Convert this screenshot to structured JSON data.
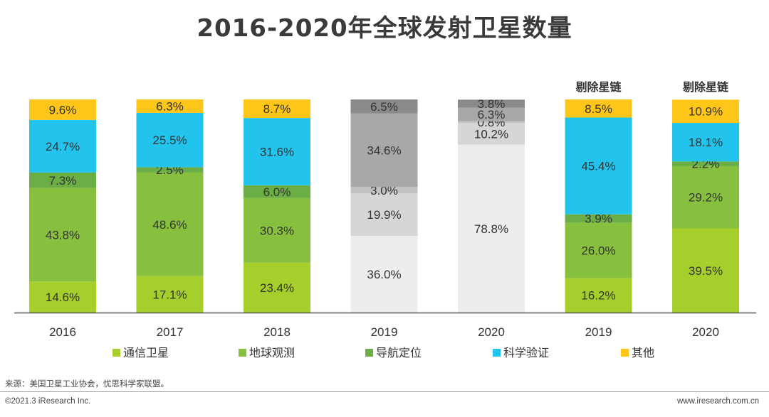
{
  "page": {
    "title": "2016-2020年全球发射卫星数量",
    "source": "来源：美国卫星工业协会，忧思科学家联盟。",
    "copyright": "©2021.3 iResearch Inc.",
    "website": "www.iresearch.com.cn"
  },
  "chart_data": {
    "type": "bar",
    "stacked": true,
    "normalized": true,
    "ylim": [
      0,
      100
    ],
    "categories": [
      "2016",
      "2017",
      "2018",
      "2019",
      "2020",
      "2019",
      "2020"
    ],
    "bar_annotations": [
      "",
      "",
      "",
      "",
      "",
      "剔除星链",
      "剔除星链"
    ],
    "series": [
      {
        "name": "通信卫星",
        "color": "#a6cf2c",
        "values": [
          14.6,
          17.1,
          23.4,
          36.0,
          78.8,
          16.2,
          39.5
        ]
      },
      {
        "name": "地球观测",
        "color": "#87c03f",
        "values": [
          43.8,
          48.6,
          30.3,
          19.9,
          10.2,
          26.0,
          29.2
        ]
      },
      {
        "name": "导航定位",
        "color": "#6aae45",
        "values": [
          7.3,
          2.5,
          6.0,
          3.0,
          0.8,
          3.9,
          2.2
        ]
      },
      {
        "name": "科学验证",
        "color": "#22c4ee",
        "values": [
          24.7,
          25.5,
          31.6,
          34.6,
          6.3,
          45.4,
          18.1
        ]
      },
      {
        "name": "其他",
        "color": "#ffc61a",
        "values": [
          9.6,
          6.3,
          8.7,
          6.5,
          3.8,
          8.5,
          10.9
        ]
      }
    ],
    "greyed_bars": [
      3,
      4
    ],
    "grey_colors": [
      "#ededed",
      "#d6d6d6",
      "#c2c2c2",
      "#a8a8a8",
      "#8a8a8a"
    ],
    "value_format": "{v}%",
    "legend_position": "bottom"
  }
}
